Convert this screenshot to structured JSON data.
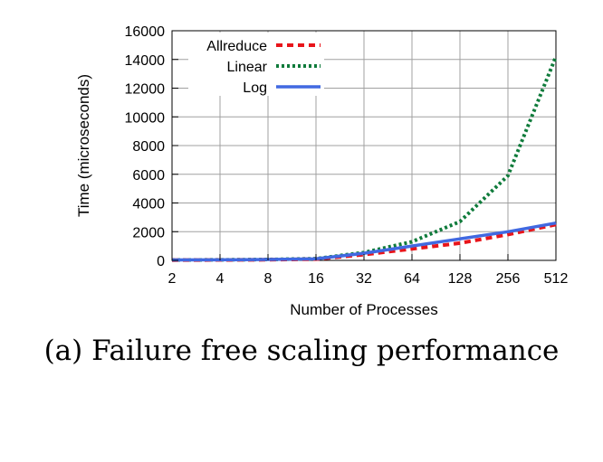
{
  "caption": "(a) Failure free scaling performance",
  "chart_data": {
    "type": "line",
    "title": "",
    "xlabel": "Number of Processes",
    "ylabel": "Time (microseconds)",
    "x": [
      2,
      4,
      8,
      16,
      32,
      64,
      128,
      256,
      512
    ],
    "x_tick_labels": [
      "2",
      "4",
      "8",
      "16",
      "32",
      "64",
      "128",
      "256",
      "512"
    ],
    "x_scale": "log2",
    "ylim": [
      0,
      16000
    ],
    "y_ticks": [
      0,
      2000,
      4000,
      6000,
      8000,
      10000,
      12000,
      14000,
      16000
    ],
    "y_tick_labels": [
      "0",
      "2000",
      "4000",
      "6000",
      "8000",
      "10000",
      "12000",
      "14000",
      "16000"
    ],
    "grid": true,
    "legend": "top-left",
    "series": [
      {
        "name": "Allreduce",
        "values": [
          20,
          30,
          45,
          90,
          400,
          800,
          1200,
          1800,
          2500
        ],
        "color": "#e8141a",
        "style": "dashed"
      },
      {
        "name": "Linear",
        "values": [
          30,
          40,
          60,
          120,
          550,
          1300,
          2700,
          5900,
          14200
        ],
        "color": "#0f7b3b",
        "style": "dotted"
      },
      {
        "name": "Log",
        "values": [
          30,
          40,
          60,
          110,
          500,
          1000,
          1500,
          2000,
          2600
        ],
        "color": "#4169e1",
        "style": "solid"
      }
    ]
  }
}
